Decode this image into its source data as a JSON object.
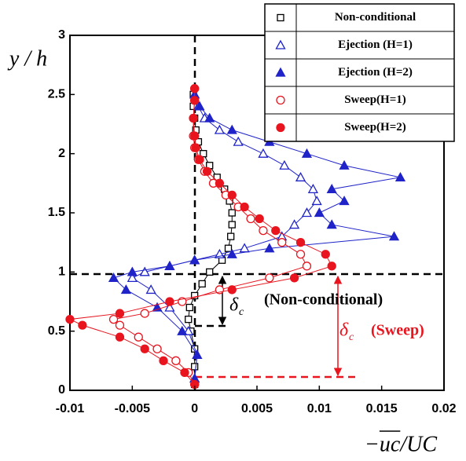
{
  "chart_data": {
    "type": "line",
    "xlabel": "−uc/UC",
    "ylabel": "y / h",
    "xlim": [
      -0.01,
      0.02
    ],
    "ylim": [
      0,
      3
    ],
    "xticks": [
      -0.01,
      -0.005,
      0,
      0.005,
      0.01,
      0.015,
      0.02
    ],
    "yticks": [
      0,
      0.5,
      1,
      1.5,
      2,
      2.5,
      3
    ],
    "legend": "upper right",
    "annotations": [
      {
        "symbol": "δ",
        "subscript": "c",
        "text": "(Non-conditional)",
        "color": "#000000"
      },
      {
        "symbol": "δ",
        "subscript": "c",
        "text": "(Sweep)",
        "color": "#e8141e"
      }
    ],
    "series": [
      {
        "name": "Non-conditional",
        "color": "#000000",
        "marker": "square",
        "filled": false,
        "y": [
          0.05,
          0.2,
          0.35,
          0.5,
          0.6,
          0.7,
          0.8,
          0.9,
          1.0,
          1.1,
          1.2,
          1.3,
          1.4,
          1.5,
          1.6,
          1.7,
          1.8,
          1.9,
          2.0,
          2.1,
          2.2,
          2.3,
          2.4,
          2.5
        ],
        "x": [
          0,
          0,
          0,
          -0.0003,
          -0.0005,
          -0.0004,
          0,
          0.0006,
          0.0012,
          0.0022,
          0.0027,
          0.0029,
          0.003,
          0.003,
          0.0028,
          0.0024,
          0.0018,
          0.0012,
          0.0007,
          0.0003,
          0.0001,
          0,
          -0.0001,
          -0.0001
        ]
      },
      {
        "name": "Ejection (H=1)",
        "color": "#1f23c8",
        "marker": "triangle",
        "filled": false,
        "y": [
          0.1,
          0.3,
          0.5,
          0.7,
          0.85,
          0.95,
          1.0,
          1.05,
          1.1,
          1.15,
          1.2,
          1.3,
          1.4,
          1.5,
          1.6,
          1.7,
          1.8,
          1.9,
          2.0,
          2.1,
          2.2,
          2.3,
          2.4,
          2.5
        ],
        "x": [
          0,
          0.0002,
          -0.0005,
          -0.002,
          -0.0035,
          -0.005,
          -0.004,
          -0.002,
          0,
          0.002,
          0.004,
          0.007,
          0.008,
          0.009,
          0.0098,
          0.0095,
          0.0085,
          0.0072,
          0.0055,
          0.0035,
          0.002,
          0.0008,
          0.0003,
          0
        ]
      },
      {
        "name": "Ejection (H=2)",
        "color": "#1f23c8",
        "marker": "triangle",
        "filled": true,
        "y": [
          0.1,
          0.3,
          0.5,
          0.7,
          0.85,
          0.95,
          1.0,
          1.05,
          1.1,
          1.15,
          1.2,
          1.3,
          1.4,
          1.5,
          1.6,
          1.7,
          1.8,
          1.9,
          2.0,
          2.1,
          2.2,
          2.3,
          2.4,
          2.5
        ],
        "x": [
          0,
          0.0002,
          -0.001,
          -0.003,
          -0.0055,
          -0.0065,
          -0.005,
          -0.002,
          0,
          0.003,
          0.006,
          0.016,
          0.011,
          0.01,
          0.012,
          0.011,
          0.0165,
          0.012,
          0.009,
          0.006,
          0.003,
          0.0012,
          0.0004,
          0
        ]
      },
      {
        "name": "Sweep(H=1)",
        "color": "#e8141e",
        "marker": "circle",
        "filled": false,
        "y": [
          0.05,
          0.15,
          0.25,
          0.35,
          0.45,
          0.55,
          0.6,
          0.65,
          0.75,
          0.85,
          0.95,
          1.05,
          1.15,
          1.25,
          1.35,
          1.45,
          1.55,
          1.65,
          1.75,
          1.85,
          1.95,
          2.05,
          2.15,
          2.3,
          2.45,
          2.55
        ],
        "x": [
          0,
          -0.0005,
          -0.0015,
          -0.003,
          -0.0045,
          -0.006,
          -0.0065,
          -0.004,
          -0.001,
          0.002,
          0.006,
          0.009,
          0.0085,
          0.007,
          0.0055,
          0.0045,
          0.0035,
          0.0025,
          0.0015,
          0.0008,
          0.0003,
          0,
          -0.0001,
          -0.0001,
          0,
          0
        ]
      },
      {
        "name": "Sweep(H=2)",
        "color": "#e8141e",
        "marker": "circle",
        "filled": true,
        "y": [
          0.05,
          0.15,
          0.25,
          0.35,
          0.45,
          0.55,
          0.6,
          0.65,
          0.75,
          0.85,
          0.95,
          1.05,
          1.15,
          1.25,
          1.35,
          1.45,
          1.55,
          1.65,
          1.75,
          1.85,
          1.95,
          2.05,
          2.15,
          2.3,
          2.45,
          2.55
        ],
        "x": [
          0,
          -0.0008,
          -0.0025,
          -0.004,
          -0.006,
          -0.009,
          -0.01,
          -0.006,
          -0.002,
          0.003,
          0.008,
          0.011,
          0.0105,
          0.0085,
          0.0065,
          0.0052,
          0.004,
          0.003,
          0.002,
          0.001,
          0.0004,
          0.0001,
          0,
          -0.0001,
          0,
          0
        ]
      }
    ]
  }
}
